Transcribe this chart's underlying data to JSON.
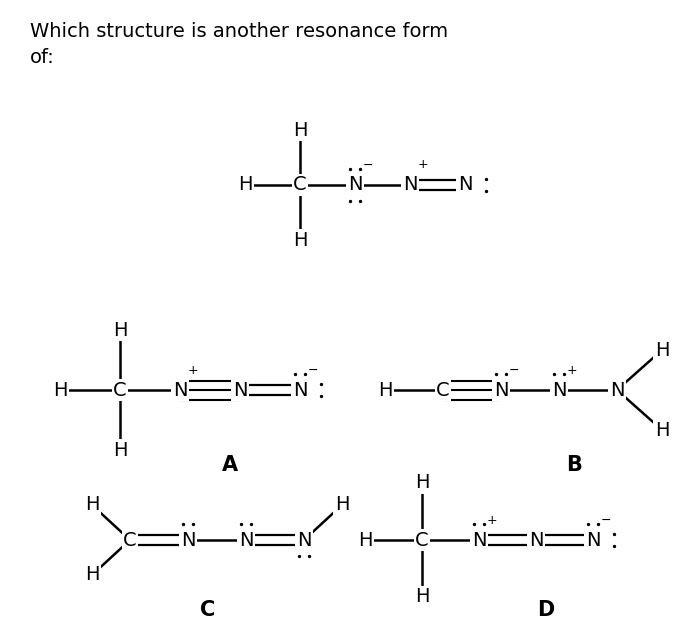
{
  "bg_color": "#ffffff",
  "text_color": "#000000",
  "font_size": 14,
  "bond_lw": 1.8,
  "title_line1": "Which structure is another resonance form",
  "title_line2": "of:",
  "label_A": "A",
  "label_B": "B",
  "label_C": "C",
  "label_D": "D"
}
